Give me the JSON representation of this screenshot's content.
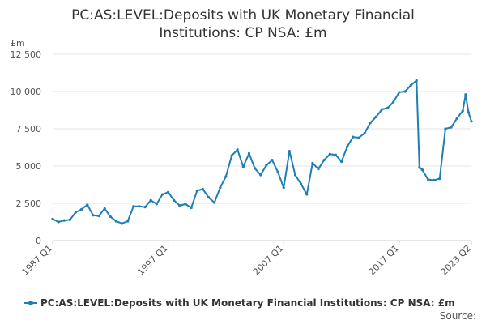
{
  "title_lines": [
    "PC:AS:LEVEL:Deposits with UK Monetary Financial",
    "Institutions: CP NSA: £m"
  ],
  "source_label": "Source:",
  "chart_data": {
    "type": "line",
    "title": "PC:AS:LEVEL:Deposits with UK Monetary Financial Institutions: CP NSA: £m",
    "ylabel": "£m",
    "xlabel": "",
    "ylim": [
      0,
      12500
    ],
    "y_ticks": [
      0,
      2500,
      5000,
      7500,
      10000,
      12500
    ],
    "y_tick_labels": [
      "0",
      "2 500",
      "5 000",
      "7 500",
      "10 000",
      "12 500"
    ],
    "x_tick_labels": [
      "1987 Q1",
      "1997 Q1",
      "2007 Q1",
      "2017 Q1",
      "2023 Q2"
    ],
    "grid": true,
    "legend_position": "bottom",
    "series": [
      {
        "name": "PC:AS:LEVEL:Deposits with UK Monetary Financial Institutions: CP NSA: £m",
        "color": "#1f7fb4",
        "points": [
          [
            "1987 Q1",
            1450
          ],
          [
            "1987 Q3",
            1250
          ],
          [
            "1988 Q1",
            1350
          ],
          [
            "1988 Q3",
            1400
          ],
          [
            "1989 Q1",
            1900
          ],
          [
            "1989 Q3",
            2100
          ],
          [
            "1990 Q1",
            2400
          ],
          [
            "1990 Q3",
            1700
          ],
          [
            "1991 Q1",
            1650
          ],
          [
            "1991 Q3",
            2150
          ],
          [
            "1992 Q1",
            1600
          ],
          [
            "1992 Q3",
            1300
          ],
          [
            "1993 Q1",
            1150
          ],
          [
            "1993 Q3",
            1300
          ],
          [
            "1994 Q1",
            2300
          ],
          [
            "1994 Q3",
            2300
          ],
          [
            "1995 Q1",
            2250
          ],
          [
            "1995 Q3",
            2700
          ],
          [
            "1996 Q1",
            2450
          ],
          [
            "1996 Q3",
            3100
          ],
          [
            "1997 Q1",
            3250
          ],
          [
            "1997 Q3",
            2700
          ],
          [
            "1998 Q1",
            2350
          ],
          [
            "1998 Q3",
            2450
          ],
          [
            "1999 Q1",
            2200
          ],
          [
            "1999 Q3",
            3350
          ],
          [
            "2000 Q1",
            3450
          ],
          [
            "2000 Q3",
            2900
          ],
          [
            "2001 Q1",
            2550
          ],
          [
            "2001 Q3",
            3550
          ],
          [
            "2002 Q1",
            4300
          ],
          [
            "2002 Q3",
            5700
          ],
          [
            "2003 Q1",
            6100
          ],
          [
            "2003 Q3",
            4950
          ],
          [
            "2004 Q1",
            5850
          ],
          [
            "2004 Q3",
            4850
          ],
          [
            "2005 Q1",
            4400
          ],
          [
            "2005 Q3",
            5050
          ],
          [
            "2006 Q1",
            5400
          ],
          [
            "2006 Q3",
            4600
          ],
          [
            "2007 Q1",
            3550
          ],
          [
            "2007 Q3",
            6000
          ],
          [
            "2008 Q1",
            4400
          ],
          [
            "2008 Q3",
            3800
          ],
          [
            "2009 Q1",
            3100
          ],
          [
            "2009 Q3",
            5200
          ],
          [
            "2010 Q1",
            4800
          ],
          [
            "2010 Q3",
            5400
          ],
          [
            "2011 Q1",
            5800
          ],
          [
            "2011 Q3",
            5750
          ],
          [
            "2012 Q1",
            5300
          ],
          [
            "2012 Q3",
            6300
          ],
          [
            "2013 Q1",
            6950
          ],
          [
            "2013 Q3",
            6900
          ],
          [
            "2014 Q1",
            7200
          ],
          [
            "2014 Q3",
            7900
          ],
          [
            "2015 Q1",
            8300
          ],
          [
            "2015 Q3",
            8800
          ],
          [
            "2016 Q1",
            8900
          ],
          [
            "2016 Q3",
            9300
          ],
          [
            "2017 Q1",
            9950
          ],
          [
            "2017 Q3",
            10000
          ],
          [
            "2018 Q1",
            10400
          ],
          [
            "2018 Q3",
            10750
          ],
          [
            "2018 Q4",
            4900
          ],
          [
            "2019 Q1",
            4750
          ],
          [
            "2019 Q3",
            4100
          ],
          [
            "2020 Q1",
            4050
          ],
          [
            "2020 Q3",
            4150
          ],
          [
            "2021 Q1",
            7500
          ],
          [
            "2021 Q3",
            7600
          ],
          [
            "2022 Q1",
            8200
          ],
          [
            "2022 Q3",
            8700
          ],
          [
            "2022 Q4",
            9800
          ],
          [
            "2023 Q1",
            8600
          ],
          [
            "2023 Q2",
            8000
          ]
        ]
      }
    ]
  }
}
